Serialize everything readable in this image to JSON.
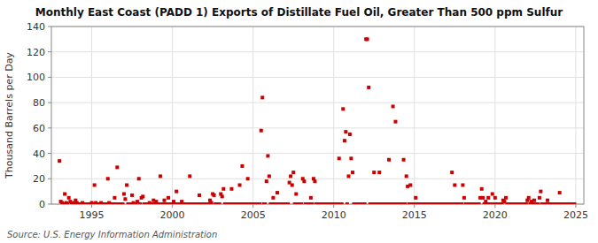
{
  "chart_data": {
    "type": "scatter",
    "title": "Monthly East Coast (PADD 1) Exports of Distillate Fuel Oil, Greater Than 500 ppm Sulfur",
    "y_label": "Thousand Barrels per Day",
    "annotations": [
      "Source: U.S. Energy Information Administration"
    ],
    "color": "#cc0000",
    "marker": "square",
    "grid": true,
    "xlim": [
      1992.5,
      2025.5
    ],
    "xticks": [
      1995,
      2000,
      2005,
      2010,
      2015,
      2020,
      2025
    ],
    "ylim": [
      0,
      140
    ],
    "yticks": [
      0,
      20,
      40,
      60,
      80,
      100,
      120,
      140
    ],
    "x": [
      1993.0,
      1993.08,
      1993.17,
      1993.25,
      1993.33,
      1993.42,
      1993.5,
      1993.58,
      1993.67,
      1993.75,
      1993.83,
      1993.92,
      1994.0,
      1994.08,
      1994.17,
      1994.25,
      1994.33,
      1994.42,
      1994.5,
      1994.58,
      1994.67,
      1994.75,
      1994.83,
      1994.92,
      1995.0,
      1995.08,
      1995.17,
      1995.25,
      1995.33,
      1995.42,
      1995.5,
      1995.58,
      1995.67,
      1995.75,
      1995.83,
      1995.92,
      1996.0,
      1996.08,
      1996.17,
      1996.25,
      1996.33,
      1996.42,
      1996.5,
      1996.58,
      1996.67,
      1996.75,
      1996.83,
      1996.92,
      1997.0,
      1997.08,
      1997.17,
      1997.25,
      1997.33,
      1997.42,
      1997.5,
      1997.58,
      1997.67,
      1997.75,
      1997.83,
      1997.92,
      1998.0,
      1998.08,
      1998.17,
      1998.25,
      1998.33,
      1998.42,
      1998.5,
      1998.58,
      1998.67,
      1998.75,
      1998.83,
      1998.92,
      1999.0,
      1999.08,
      1999.17,
      1999.25,
      1999.33,
      1999.42,
      1999.5,
      1999.58,
      1999.67,
      1999.75,
      1999.83,
      1999.92,
      2000.0,
      2000.08,
      2000.17,
      2000.25,
      2000.33,
      2000.42,
      2000.5,
      2000.58,
      2000.67,
      2000.75,
      2000.83,
      2000.92,
      2001.0,
      2001.08,
      2001.17,
      2001.25,
      2001.33,
      2001.42,
      2001.5,
      2001.58,
      2001.67,
      2001.75,
      2001.83,
      2001.92,
      2002.0,
      2002.08,
      2002.17,
      2002.25,
      2002.33,
      2002.42,
      2002.5,
      2002.58,
      2002.67,
      2002.75,
      2002.83,
      2002.92,
      2003.0,
      2003.08,
      2003.17,
      2003.25,
      2003.33,
      2003.42,
      2003.5,
      2003.58,
      2003.67,
      2003.75,
      2003.83,
      2003.92,
      2004.0,
      2004.08,
      2004.17,
      2004.25,
      2004.33,
      2004.42,
      2004.5,
      2004.58,
      2004.67,
      2004.75,
      2004.83,
      2004.92,
      2005.0,
      2005.08,
      2005.17,
      2005.25,
      2005.33,
      2005.42,
      2005.5,
      2005.58,
      2005.67,
      2005.75,
      2005.83,
      2005.92,
      2006.0,
      2006.08,
      2006.17,
      2006.25,
      2006.33,
      2006.42,
      2006.5,
      2006.58,
      2006.67,
      2006.75,
      2006.83,
      2006.92,
      2007.0,
      2007.08,
      2007.17,
      2007.25,
      2007.33,
      2007.42,
      2007.5,
      2007.58,
      2007.67,
      2007.75,
      2007.83,
      2007.92,
      2008.0,
      2008.08,
      2008.17,
      2008.25,
      2008.33,
      2008.42,
      2008.5,
      2008.58,
      2008.67,
      2008.75,
      2008.83,
      2008.92,
      2009.0,
      2009.08,
      2009.17,
      2009.25,
      2009.33,
      2009.42,
      2009.5,
      2009.58,
      2009.67,
      2009.75,
      2009.83,
      2009.92,
      2010.0,
      2010.08,
      2010.17,
      2010.25,
      2010.33,
      2010.42,
      2010.5,
      2010.58,
      2010.67,
      2010.75,
      2010.83,
      2010.92,
      2011.0,
      2011.08,
      2011.17,
      2011.25,
      2011.33,
      2011.42,
      2011.5,
      2011.58,
      2011.67,
      2011.75,
      2011.83,
      2011.92,
      2012.0,
      2012.08,
      2012.17,
      2012.25,
      2012.33,
      2012.42,
      2012.5,
      2012.58,
      2012.67,
      2012.75,
      2012.83,
      2012.92,
      2013.0,
      2013.08,
      2013.17,
      2013.25,
      2013.33,
      2013.42,
      2013.5,
      2013.58,
      2013.67,
      2013.75,
      2013.83,
      2013.92,
      2014.0,
      2014.08,
      2014.17,
      2014.25,
      2014.33,
      2014.42,
      2014.5,
      2014.58,
      2014.67,
      2014.75,
      2014.83,
      2014.92,
      2015.0,
      2015.08,
      2015.17,
      2015.25,
      2015.33,
      2015.42,
      2015.5,
      2015.58,
      2015.67,
      2015.75,
      2015.83,
      2015.92,
      2016.0,
      2016.08,
      2016.17,
      2016.25,
      2016.33,
      2016.42,
      2016.5,
      2016.58,
      2016.67,
      2016.75,
      2016.83,
      2016.92,
      2017.0,
      2017.08,
      2017.17,
      2017.25,
      2017.33,
      2017.42,
      2017.5,
      2017.58,
      2017.67,
      2017.75,
      2017.83,
      2017.92,
      2018.0,
      2018.08,
      2018.17,
      2018.25,
      2018.33,
      2018.42,
      2018.5,
      2018.58,
      2018.67,
      2018.75,
      2018.83,
      2018.92,
      2019.0,
      2019.08,
      2019.17,
      2019.25,
      2019.33,
      2019.42,
      2019.5,
      2019.58,
      2019.67,
      2019.75,
      2019.83,
      2019.92,
      2020.0,
      2020.08,
      2020.17,
      2020.25,
      2020.33,
      2020.42,
      2020.5,
      2020.58,
      2020.67,
      2020.75,
      2020.83,
      2020.92,
      2021.0,
      2021.08,
      2021.17,
      2021.25,
      2021.33,
      2021.42,
      2021.5,
      2021.58,
      2021.67,
      2021.75,
      2021.83,
      2021.92,
      2022.0,
      2022.08,
      2022.17,
      2022.25,
      2022.33,
      2022.42,
      2022.5,
      2022.58,
      2022.67,
      2022.75,
      2022.83,
      2022.92,
      2023.0,
      2023.08,
      2023.17,
      2023.25,
      2023.33,
      2023.42,
      2023.5,
      2023.58,
      2023.67,
      2023.75,
      2023.83,
      2023.92,
      2024.0,
      2024.08,
      2024.17,
      2024.25,
      2024.33,
      2024.42,
      2024.5,
      2024.58,
      2024.67,
      2024.75,
      2024.83,
      2024.92
    ],
    "values": [
      34,
      2,
      1,
      0,
      8,
      1,
      0,
      5,
      2,
      0,
      1,
      0,
      3,
      1,
      0,
      0,
      0,
      1,
      0,
      0,
      0,
      0,
      0,
      0,
      1,
      0,
      15,
      1,
      0,
      0,
      0,
      1,
      0,
      0,
      0,
      0,
      20,
      1,
      0,
      0,
      0,
      5,
      0,
      29,
      0,
      0,
      0,
      0,
      8,
      4,
      15,
      0,
      0,
      0,
      7,
      1,
      0,
      0,
      2,
      20,
      0,
      5,
      6,
      0,
      0,
      0,
      0,
      1,
      0,
      0,
      3,
      0,
      2,
      0,
      0,
      22,
      0,
      0,
      3,
      0,
      0,
      5,
      0,
      0,
      0,
      2,
      0,
      10,
      0,
      0,
      0,
      2,
      0,
      0,
      0,
      0,
      0,
      22,
      0,
      0,
      0,
      0,
      0,
      0,
      7,
      0,
      0,
      0,
      0,
      0,
      0,
      0,
      3,
      1,
      8,
      7,
      0,
      0,
      0,
      0,
      8,
      6,
      12,
      0,
      0,
      0,
      0,
      0,
      12,
      0,
      0,
      0,
      0,
      0,
      15,
      0,
      30,
      0,
      0,
      0,
      20,
      0,
      0,
      0,
      0,
      0,
      0,
      0,
      0,
      0,
      58,
      84,
      0,
      0,
      18,
      38,
      22,
      0,
      0,
      5,
      0,
      0,
      9,
      0,
      0,
      0,
      0,
      0,
      0,
      0,
      0,
      17,
      22,
      15,
      25,
      0,
      8,
      0,
      0,
      0,
      0,
      20,
      18,
      0,
      0,
      0,
      0,
      5,
      0,
      20,
      18,
      0,
      0,
      0,
      0,
      0,
      0,
      0,
      0,
      0,
      0,
      0,
      0,
      0,
      0,
      0,
      0,
      0,
      36,
      0,
      0,
      75,
      50,
      57,
      0,
      22,
      55,
      36,
      25,
      0,
      0,
      0,
      0,
      0,
      0,
      0,
      0,
      0,
      130,
      130,
      92,
      0,
      0,
      0,
      25,
      0,
      0,
      0,
      25,
      0,
      0,
      0,
      0,
      0,
      0,
      35,
      0,
      0,
      77,
      0,
      65,
      0,
      0,
      0,
      0,
      0,
      35,
      0,
      22,
      14,
      0,
      15,
      0,
      0,
      0,
      5,
      0,
      0,
      0,
      0,
      0,
      0,
      0,
      0,
      0,
      0,
      0,
      0,
      0,
      0,
      0,
      0,
      0,
      0,
      0,
      0,
      0,
      0,
      0,
      0,
      0,
      0,
      25,
      0,
      15,
      0,
      0,
      0,
      0,
      0,
      15,
      5,
      0,
      0,
      0,
      0,
      0,
      0,
      0,
      0,
      0,
      0,
      0,
      5,
      12,
      5,
      0,
      2,
      0,
      5,
      0,
      0,
      8,
      0,
      5,
      0,
      0,
      0,
      0,
      0,
      3,
      2,
      5,
      0,
      0,
      0,
      0,
      0,
      0,
      0,
      0,
      0,
      0,
      0,
      0,
      0,
      0,
      0,
      3,
      5,
      0,
      2,
      0,
      3,
      0,
      0,
      0,
      5,
      10,
      0,
      0,
      0,
      0,
      3,
      0,
      0,
      0,
      0,
      0,
      0,
      0,
      0,
      9,
      0,
      0,
      0,
      0,
      0,
      0,
      0,
      0,
      0,
      0,
      0
    ]
  }
}
